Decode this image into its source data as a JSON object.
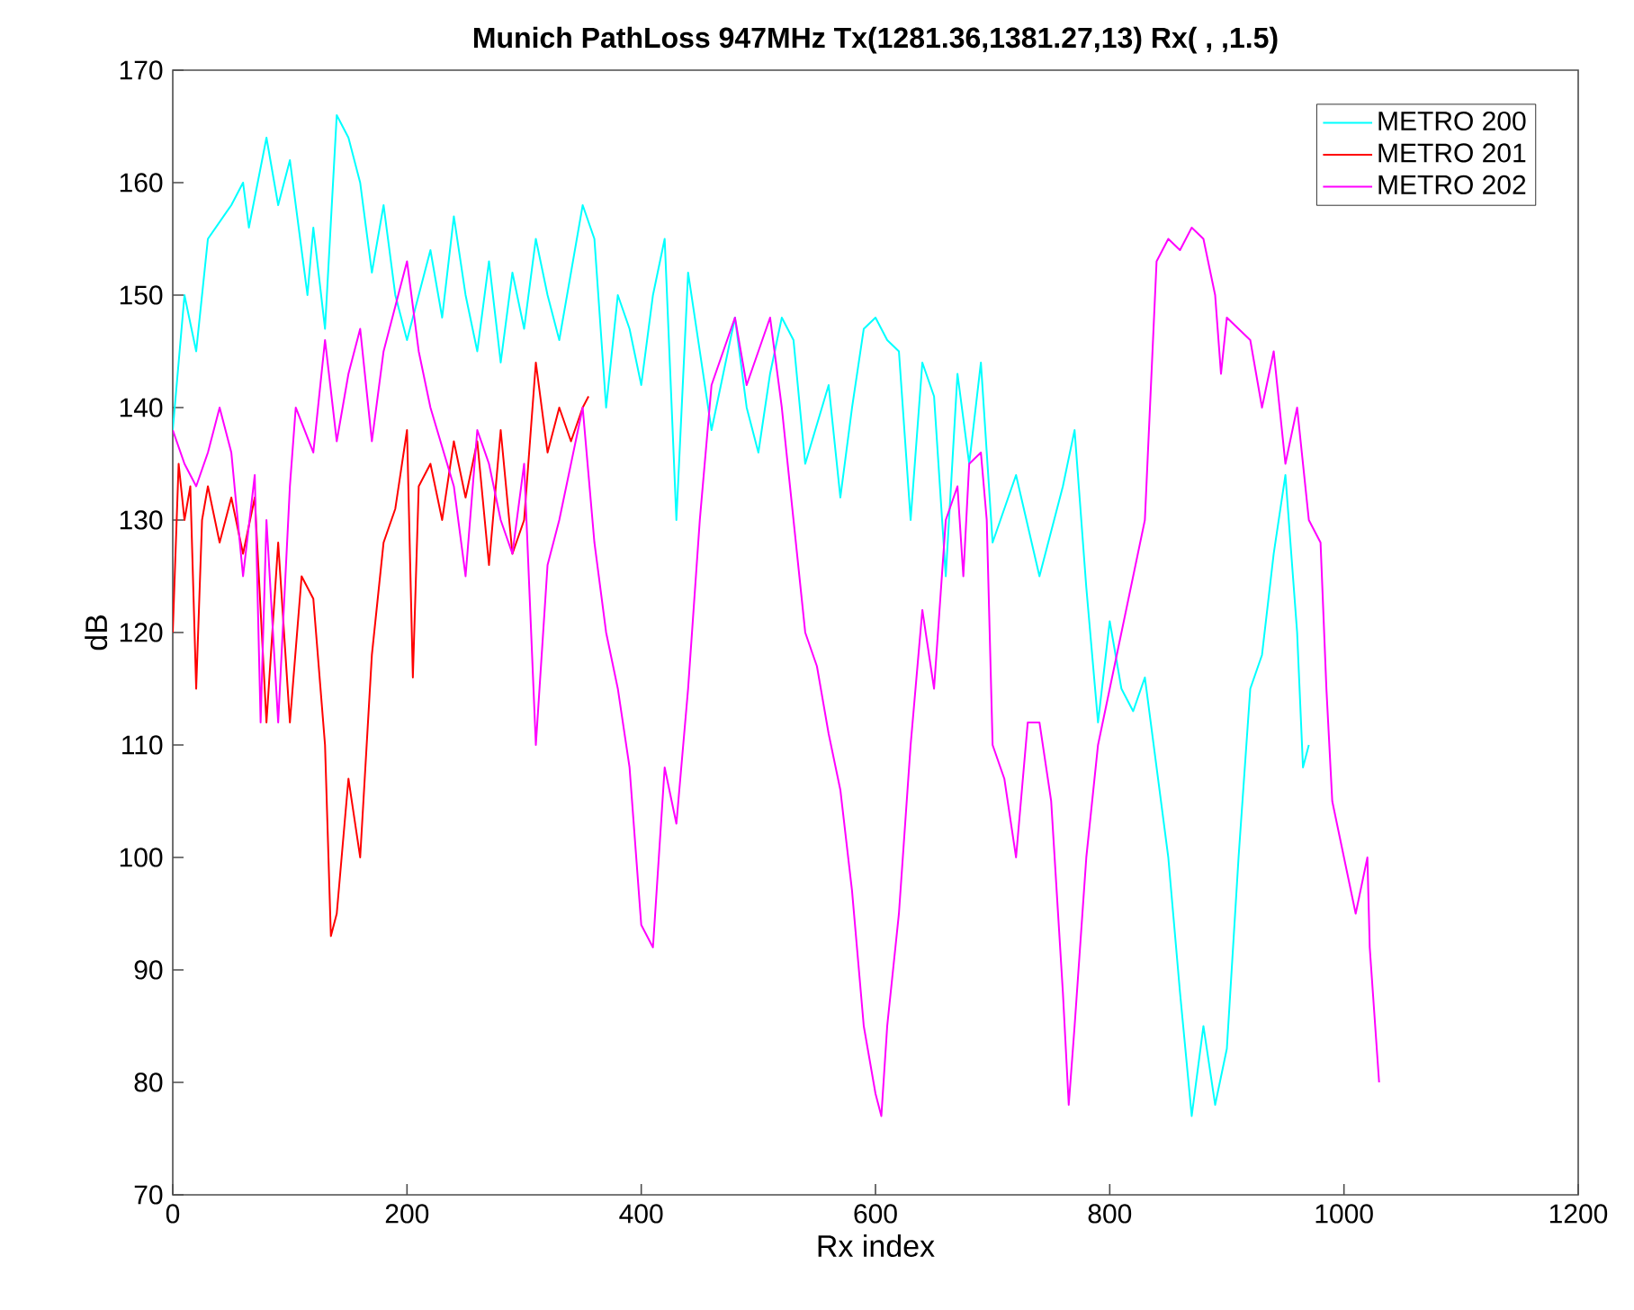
{
  "chart_data": {
    "type": "line",
    "title": "Munich PathLoss 947MHz Tx(1281.36,1381.27,13) Rx( , ,1.5)",
    "xlabel": "Rx index",
    "ylabel": "dB",
    "xlim": [
      0,
      1200
    ],
    "xticks": [
      0,
      200,
      400,
      600,
      800,
      1000,
      1200
    ],
    "ylim": [
      70,
      170
    ],
    "yticks": [
      70,
      80,
      90,
      100,
      110,
      120,
      130,
      140,
      150,
      160,
      170
    ],
    "grid": false,
    "legend": "top right",
    "line_style": "solid",
    "marker": "none",
    "series": [
      {
        "name": "METRO 200",
        "color": "#00ffff",
        "x": [
          0,
          10,
          20,
          30,
          50,
          60,
          65,
          80,
          90,
          100,
          115,
          120,
          130,
          140,
          150,
          160,
          170,
          180,
          190,
          200,
          210,
          220,
          230,
          240,
          250,
          260,
          270,
          280,
          290,
          300,
          310,
          320,
          330,
          340,
          350,
          360,
          370,
          380,
          390,
          400,
          410,
          420,
          430,
          440,
          450,
          460,
          470,
          480,
          490,
          500,
          510,
          520,
          530,
          540,
          560,
          570,
          580,
          590,
          600,
          610,
          620,
          630,
          640,
          650,
          660,
          670,
          680,
          690,
          700,
          720,
          740,
          760,
          770,
          780,
          790,
          800,
          810,
          820,
          830,
          850,
          860,
          870,
          880,
          890,
          900,
          910,
          920,
          930,
          940,
          950,
          960,
          965,
          970
        ],
        "values": [
          138,
          150,
          145,
          155,
          158,
          160,
          156,
          164,
          158,
          162,
          150,
          156,
          147,
          166,
          164,
          160,
          152,
          158,
          150,
          146,
          150,
          154,
          148,
          157,
          150,
          145,
          153,
          144,
          152,
          147,
          155,
          150,
          146,
          152,
          158,
          155,
          140,
          150,
          147,
          142,
          150,
          155,
          130,
          152,
          145,
          138,
          143,
          148,
          140,
          136,
          143,
          148,
          146,
          135,
          142,
          132,
          140,
          147,
          148,
          146,
          145,
          130,
          144,
          141,
          125,
          143,
          135,
          144,
          128,
          134,
          125,
          133,
          138,
          124,
          112,
          121,
          115,
          113,
          116,
          100,
          88,
          77,
          85,
          78,
          83,
          100,
          115,
          118,
          127,
          134,
          120,
          108,
          110
        ]
      },
      {
        "name": "METRO 201",
        "color": "#ff0000",
        "x": [
          0,
          5,
          10,
          15,
          20,
          25,
          30,
          40,
          50,
          60,
          70,
          80,
          90,
          100,
          110,
          120,
          130,
          135,
          140,
          150,
          160,
          170,
          180,
          190,
          200,
          205,
          210,
          220,
          230,
          240,
          250,
          260,
          270,
          280,
          290,
          300,
          310,
          320,
          330,
          340,
          350,
          355
        ],
        "values": [
          120,
          135,
          130,
          133,
          115,
          130,
          133,
          128,
          132,
          127,
          132,
          112,
          128,
          112,
          125,
          123,
          110,
          93,
          95,
          107,
          100,
          118,
          128,
          131,
          138,
          116,
          133,
          135,
          130,
          137,
          132,
          137,
          126,
          138,
          127,
          130,
          144,
          136,
          140,
          137,
          140,
          141
        ]
      },
      {
        "name": "METRO 202",
        "color": "#ff00ff",
        "x": [
          0,
          10,
          20,
          30,
          40,
          50,
          60,
          70,
          75,
          80,
          90,
          100,
          105,
          120,
          130,
          140,
          150,
          160,
          170,
          180,
          200,
          210,
          220,
          240,
          250,
          260,
          270,
          280,
          290,
          300,
          310,
          320,
          330,
          340,
          350,
          360,
          370,
          380,
          390,
          400,
          410,
          420,
          430,
          440,
          450,
          460,
          470,
          480,
          490,
          500,
          510,
          520,
          530,
          540,
          550,
          560,
          570,
          580,
          590,
          600,
          605,
          610,
          620,
          630,
          640,
          650,
          660,
          670,
          675,
          680,
          690,
          695,
          700,
          710,
          720,
          730,
          740,
          750,
          760,
          765,
          770,
          780,
          790,
          800,
          810,
          820,
          830,
          840,
          850,
          860,
          870,
          880,
          890,
          895,
          900,
          920,
          930,
          940,
          950,
          960,
          970,
          980,
          985,
          990,
          1000,
          1010,
          1020,
          1022,
          1030
        ],
        "values": [
          138,
          135,
          133,
          136,
          140,
          136,
          125,
          134,
          112,
          130,
          112,
          133,
          140,
          136,
          146,
          137,
          143,
          147,
          137,
          145,
          153,
          145,
          140,
          133,
          125,
          138,
          135,
          130,
          127,
          135,
          110,
          126,
          130,
          135,
          140,
          128,
          120,
          115,
          108,
          94,
          92,
          108,
          103,
          115,
          130,
          142,
          145,
          148,
          142,
          145,
          148,
          140,
          130,
          120,
          117,
          111,
          106,
          97,
          85,
          79,
          77,
          85,
          95,
          110,
          122,
          115,
          130,
          133,
          125,
          135,
          136,
          130,
          110,
          107,
          100,
          112,
          112,
          105,
          88,
          78,
          85,
          100,
          110,
          115,
          120,
          125,
          130,
          153,
          155,
          154,
          156,
          155,
          150,
          143,
          148,
          146,
          140,
          145,
          135,
          140,
          130,
          128,
          115,
          105,
          100,
          95,
          100,
          92,
          80
        ]
      }
    ]
  }
}
